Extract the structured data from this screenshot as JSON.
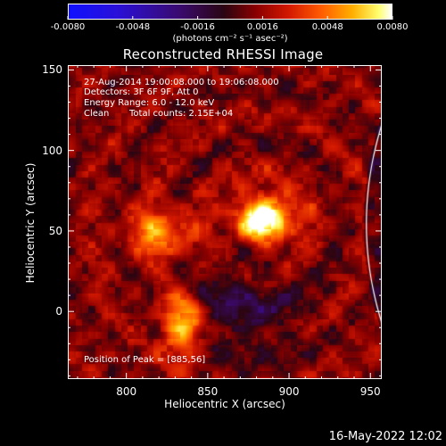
{
  "chart_data": {
    "type": "heatmap",
    "title": "Reconstructed RHESSI Image",
    "xlabel": "Heliocentric X (arcsec)",
    "ylabel": "Heliocentric Y (arcsec)",
    "xlim": [
      764,
      957
    ],
    "ylim": [
      -42,
      153
    ],
    "xticks": [
      "800",
      "850",
      "900",
      "950"
    ],
    "xtick_values": [
      800,
      850,
      900,
      950
    ],
    "yticks": [
      "150",
      "100",
      "50",
      "0"
    ],
    "ytick_values": [
      150,
      100,
      50,
      0
    ],
    "colorbar": {
      "range": [
        -0.008,
        0.008
      ],
      "ticks": [
        "-0.0080",
        "-0.0048",
        "-0.0016",
        "0.0016",
        "0.0048",
        "0.0080"
      ],
      "units": "(photons cm⁻² s⁻¹ asec⁻²)"
    },
    "annotations": {
      "time_range": "27-Aug-2014 19:00:08.000 to 19:06:08.000",
      "detectors": "Detectors: 3F 6F 9F, Att 0",
      "energy": "Energy Range: 6.0 - 12.0 keV",
      "clean": "Clean",
      "counts": "Total counts: 2.15E+04",
      "peak": "Position of Peak = [885,56]"
    },
    "sources": [
      {
        "x": 884,
        "y": 58,
        "intensity": 0.008
      },
      {
        "x": 834,
        "y": -8,
        "intensity": 0.0058
      },
      {
        "x": 820,
        "y": 50,
        "intensity": 0.0045
      }
    ],
    "limb_circle": true
  },
  "footer": {
    "date": "16-May-2022 12:02"
  },
  "colors": {
    "background": "#000000",
    "axes": "#ffffff"
  }
}
